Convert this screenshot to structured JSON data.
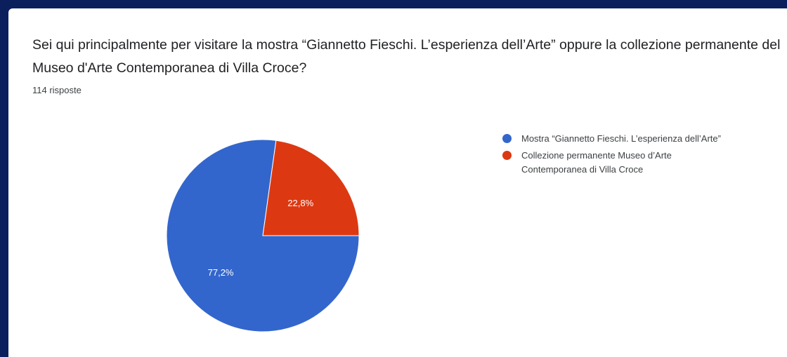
{
  "question": {
    "text": "Sei qui principalmente per visitare la mostra “Giannetto Fieschi. L’esperienza dell’Arte” oppure la collezione permanente del Museo d'Arte Contemporanea di Villa Croce?",
    "responses": "114 risposte"
  },
  "chart_data": {
    "type": "pie",
    "categories": [
      "Mostra “Giannetto Fieschi. L’esperienza dell’Arte”",
      "Collezione permanente Museo d’Arte Contemporanea di Villa Croce"
    ],
    "values": [
      77.2,
      22.8
    ],
    "labels": [
      "77,2%",
      "22,8%"
    ],
    "colors": [
      "#3366cc",
      "#dc3912"
    ],
    "legend": "right"
  }
}
